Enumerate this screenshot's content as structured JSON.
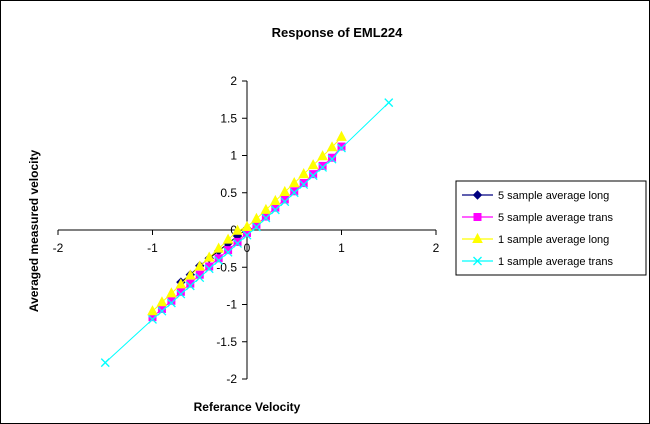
{
  "chart_data": {
    "type": "scatter",
    "title": "Response of EML224",
    "xlabel": "Referance Velocity",
    "ylabel": "Averaged measured velocity",
    "xlim": [
      -2,
      2
    ],
    "ylim": [
      -2,
      2
    ],
    "xticks": [
      -2,
      -1,
      0,
      1,
      2
    ],
    "yticks": [
      -2,
      -1.5,
      -1,
      -0.5,
      0,
      0.5,
      1,
      1.5,
      2
    ],
    "xtick_labels": [
      "-2",
      "-1",
      "0",
      "1",
      "2"
    ],
    "ytick_labels": [
      "-2",
      "-1.5",
      "-1",
      "-0.5",
      "0",
      "0.5",
      "1",
      "1.5",
      "2"
    ],
    "grid": false,
    "legend_position": "right",
    "series": [
      {
        "name": "5 sample average long",
        "color": "#000080",
        "marker": "diamond",
        "x": [
          -0.7,
          -0.6,
          -0.5,
          -0.4,
          -0.3,
          -0.2,
          -0.1,
          0.0
        ],
        "y": [
          -0.7,
          -0.6,
          -0.48,
          -0.38,
          -0.28,
          -0.18,
          -0.08,
          0.02
        ]
      },
      {
        "name": "5 sample average trans",
        "color": "#FF00FF",
        "marker": "square",
        "x": [
          -1.0,
          -0.9,
          -0.8,
          -0.7,
          -0.6,
          -0.5,
          -0.4,
          -0.3,
          -0.2,
          -0.1,
          0.0,
          0.1,
          0.2,
          0.3,
          0.4,
          0.5,
          0.6,
          0.7,
          0.8,
          0.9,
          1.0
        ],
        "y": [
          -1.17,
          -1.06,
          -0.95,
          -0.83,
          -0.72,
          -0.6,
          -0.49,
          -0.38,
          -0.27,
          -0.16,
          -0.04,
          0.07,
          0.18,
          0.3,
          0.41,
          0.52,
          0.63,
          0.75,
          0.86,
          0.97,
          1.12
        ]
      },
      {
        "name": "1 sample average long",
        "color": "#FFFF00",
        "marker": "triangle",
        "x": [
          -1.0,
          -0.9,
          -0.8,
          -0.7,
          -0.6,
          -0.5,
          -0.4,
          -0.3,
          -0.2,
          -0.1,
          0.0,
          0.1,
          0.2,
          0.3,
          0.4,
          0.5,
          0.6,
          0.7,
          0.8,
          0.9,
          1.0
        ],
        "y": [
          -1.09,
          -0.97,
          -0.85,
          -0.73,
          -0.61,
          -0.49,
          -0.37,
          -0.25,
          -0.13,
          -0.01,
          0.04,
          0.15,
          0.27,
          0.39,
          0.51,
          0.63,
          0.75,
          0.87,
          0.99,
          1.11,
          1.25
        ]
      },
      {
        "name": "1 sample average trans",
        "color": "#00FFFF",
        "marker": "x",
        "line": true,
        "x": [
          -1.5,
          -1.0,
          -0.9,
          -0.8,
          -0.7,
          -0.6,
          -0.5,
          -0.4,
          -0.3,
          -0.2,
          -0.1,
          0.0,
          0.1,
          0.2,
          0.3,
          0.4,
          0.5,
          0.6,
          0.7,
          0.8,
          0.9,
          1.0,
          1.5
        ],
        "y": [
          -1.78,
          -1.2,
          -1.09,
          -0.98,
          -0.86,
          -0.75,
          -0.64,
          -0.52,
          -0.41,
          -0.3,
          -0.18,
          -0.07,
          0.04,
          0.16,
          0.27,
          0.38,
          0.5,
          0.61,
          0.73,
          0.84,
          0.95,
          1.1,
          1.71
        ]
      }
    ]
  }
}
